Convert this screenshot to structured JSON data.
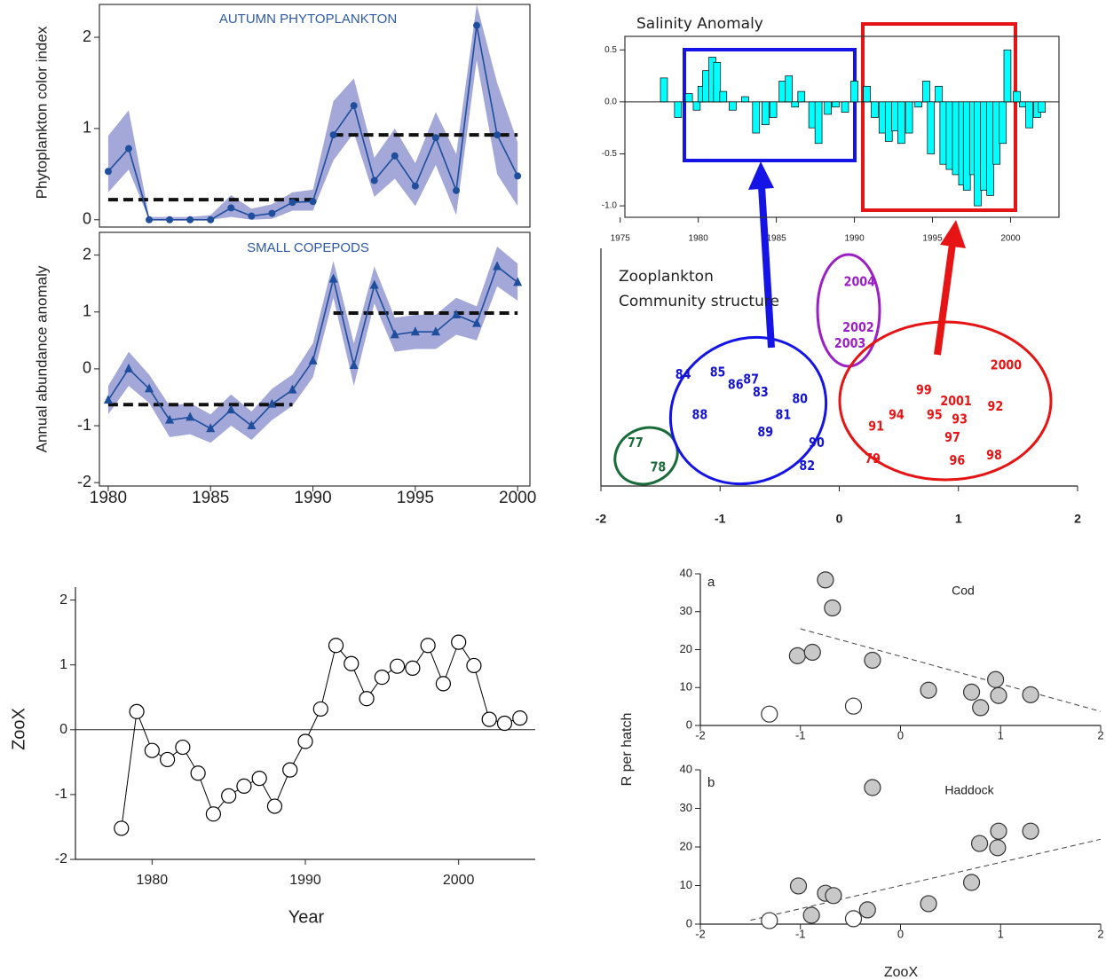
{
  "chart_data": [
    {
      "type": "band-line",
      "title": "AUTUMN PHYTOPLANKTON",
      "y_label": "Phytoplankton color index",
      "x": [
        1980,
        1981,
        1982,
        1983,
        1984,
        1985,
        1986,
        1987,
        1988,
        1989,
        1990,
        1991,
        1992,
        1993,
        1994,
        1995,
        1996,
        1997,
        1998,
        1999,
        2000
      ],
      "values": [
        0.53,
        0.78,
        0,
        0,
        0,
        0,
        0.13,
        0.04,
        0.07,
        0.19,
        0.2,
        0.93,
        1.25,
        0.43,
        0.7,
        0.37,
        0.9,
        0.32,
        2.13,
        0.93,
        0.48
      ],
      "band_lower": [
        0.3,
        0.55,
        0,
        0,
        0,
        0,
        0.03,
        0,
        0.01,
        0.1,
        0.1,
        0.65,
        0.95,
        0.25,
        0.45,
        0.15,
        0.6,
        0.05,
        1.75,
        0.5,
        0.15
      ],
      "band_upper": [
        0.92,
        1.2,
        0.03,
        0.03,
        0.03,
        0.05,
        0.27,
        0.12,
        0.17,
        0.3,
        0.33,
        1.3,
        1.55,
        0.68,
        1.0,
        0.62,
        1.18,
        0.72,
        2.36,
        1.5,
        0.85
      ],
      "marker": "circle",
      "color": "#1f4e9c",
      "band_color": "#a3a8d9",
      "title_color": "#2e5aa6",
      "mean_lines": [
        {
          "x": [
            1980,
            1990
          ],
          "value": 0.22
        },
        {
          "x": [
            1991,
            2000
          ],
          "value": 0.93
        }
      ],
      "xlim": [
        1979.57,
        2000.6
      ],
      "ylim": [
        -0.08,
        2.36
      ],
      "yticks": [
        0,
        1,
        2
      ]
    },
    {
      "type": "band-line",
      "title": "SMALL COPEPODS",
      "y_label": "Annual abundance anomaly",
      "x": [
        1980,
        1981,
        1982,
        1983,
        1984,
        1985,
        1986,
        1987,
        1988,
        1989,
        1990,
        1991,
        1992,
        1993,
        1994,
        1995,
        1996,
        1997,
        1998,
        1999,
        2000
      ],
      "values": [
        -0.55,
        0,
        -0.35,
        -0.9,
        -0.85,
        -1.05,
        -0.72,
        -1.0,
        -0.62,
        -0.37,
        0.14,
        1.58,
        0.06,
        1.47,
        0.6,
        0.65,
        0.65,
        0.95,
        0.8,
        1.8,
        1.52
      ],
      "band_lower": [
        -0.8,
        -0.3,
        -0.6,
        -1.2,
        -1.15,
        -1.3,
        -1.0,
        -1.25,
        -0.9,
        -0.65,
        -0.15,
        1.25,
        -0.3,
        1.15,
        0.3,
        0.35,
        0.35,
        0.6,
        0.5,
        1.45,
        1.2
      ],
      "band_upper": [
        -0.3,
        0.3,
        -0.1,
        -0.65,
        -0.6,
        -0.8,
        -0.45,
        -0.75,
        -0.35,
        -0.1,
        0.45,
        1.9,
        0.45,
        1.8,
        0.9,
        0.95,
        0.95,
        1.25,
        1.1,
        2.15,
        1.85
      ],
      "marker": "triangle",
      "color": "#1f4e9c",
      "band_color": "#a3a8d9",
      "title_color": "#2e5aa6",
      "mean_lines": [
        {
          "x": [
            1980,
            1989
          ],
          "value": -0.63
        },
        {
          "x": [
            1991,
            2000
          ],
          "value": 0.98
        }
      ],
      "xlim": [
        1979.57,
        2000.6
      ],
      "ylim": [
        -2.06,
        2.4
      ],
      "xticks": [
        1980,
        1985,
        1990,
        1995,
        2000
      ],
      "yticks": [
        -2,
        -1,
        0,
        1,
        2
      ]
    },
    {
      "type": "bar",
      "title": "Salinity Anomaly",
      "color": "#00ffff",
      "x": [
        1977.8,
        1978.7,
        1979.4,
        1979.9,
        1980.2,
        1980.5,
        1980.9,
        1981.2,
        1981.6,
        1982.2,
        1983.0,
        1983.7,
        1984.3,
        1984.8,
        1985.4,
        1985.8,
        1986.2,
        1986.6,
        1987.3,
        1987.7,
        1988.3,
        1988.8,
        1989.4,
        1990.0,
        1990.8,
        1991.3,
        1991.8,
        1992.2,
        1992.6,
        1993.0,
        1993.5,
        1994.1,
        1994.6,
        1994.9,
        1995.4,
        1995.7,
        1996.1,
        1996.5,
        1996.9,
        1997.2,
        1997.6,
        1997.9,
        1998.3,
        1998.7,
        1999.1,
        1999.5,
        1999.8,
        2000.4,
        2000.8,
        2001.2,
        2001.7,
        2002.0
      ],
      "values": [
        0.23,
        -0.15,
        0.08,
        -0.08,
        0.15,
        0.3,
        0.43,
        0.38,
        0.1,
        -0.08,
        0.05,
        -0.3,
        -0.22,
        -0.15,
        0.2,
        0.25,
        -0.05,
        0.1,
        -0.25,
        -0.4,
        -0.12,
        -0.05,
        -0.1,
        0.2,
        0.15,
        -0.15,
        -0.3,
        -0.38,
        -0.28,
        -0.4,
        -0.3,
        -0.05,
        0.2,
        -0.5,
        0.15,
        -0.6,
        -0.65,
        -0.7,
        -0.8,
        -0.85,
        -0.7,
        -1.0,
        -0.85,
        -0.9,
        -0.6,
        -0.4,
        0.5,
        0.1,
        -0.05,
        -0.25,
        -0.15,
        -0.1
      ],
      "xlim": [
        1975.3,
        2003.1
      ],
      "ylim": [
        -1.11,
        0.63
      ],
      "xticks": [
        1975,
        1980,
        1985,
        1990,
        1995,
        2000
      ],
      "yticks": [
        0.5,
        {
          "value": 0,
          "label": "0.0"
        },
        {
          "value": -0.5,
          "label": "-0.5"
        },
        {
          "value": -1,
          "label": "-1.0"
        }
      ]
    },
    {
      "type": "scatter-labels",
      "title": "Zooplankton",
      "subtitle": "Community structure",
      "series": [
        {
          "color": "#1a6b3a",
          "labels": [
            "77",
            "78"
          ],
          "x": [
            -1.71,
            -1.52
          ],
          "values": [
            -1.28,
            -1.69
          ]
        },
        {
          "color": "#1414d2",
          "labels": [
            "84",
            "85",
            "86",
            "87",
            "83",
            "80",
            "81",
            "88",
            "89",
            "90",
            "82"
          ],
          "x": [
            -1.31,
            -1.02,
            -0.87,
            -0.74,
            -0.66,
            -0.33,
            -0.47,
            -1.17,
            -0.62,
            -0.19,
            -0.27
          ],
          "values": [
            -0.13,
            -0.09,
            -0.3,
            -0.21,
            -0.43,
            -0.54,
            -0.81,
            -0.81,
            -1.1,
            -1.28,
            -1.67
          ]
        },
        {
          "color": "#9b1fc4",
          "labels": [
            "2004",
            "2002",
            "2003"
          ],
          "x": [
            0.17,
            0.16,
            0.09
          ],
          "values": [
            1.43,
            0.66,
            0.39
          ]
        },
        {
          "color": "#e61414",
          "labels": [
            "2000",
            "99",
            "2001",
            "92",
            "95",
            "93",
            "94",
            "91",
            "97",
            "79",
            "96",
            "98"
          ],
          "x": [
            1.4,
            0.71,
            0.98,
            1.31,
            0.8,
            1.01,
            0.48,
            0.31,
            0.95,
            0.28,
            0.99,
            1.3
          ],
          "values": [
            0.03,
            -0.39,
            -0.58,
            -0.67,
            -0.81,
            -0.88,
            -0.81,
            -1.0,
            -1.19,
            -1.55,
            -1.58,
            -1.49
          ]
        }
      ],
      "xlim": [
        -2,
        2
      ],
      "ylim": [
        -2,
        2
      ],
      "xticks": [
        -2,
        -1,
        0,
        1,
        2
      ]
    },
    {
      "type": "line",
      "x_label": "Year",
      "y_label": "ZooX",
      "marker": "open-circle",
      "color": "#000000",
      "zero_line": true,
      "x": [
        1978,
        1979,
        1980,
        1981,
        1982,
        1983,
        1984,
        1985,
        1986,
        1987,
        1988,
        1989,
        1990,
        1991,
        1992,
        1993,
        1994,
        1995,
        1996,
        1997,
        1998,
        1999,
        2000,
        2001,
        2002,
        2003,
        2004
      ],
      "values": [
        -1.52,
        0.28,
        -0.32,
        -0.46,
        -0.27,
        -0.67,
        -1.3,
        -1.02,
        -0.87,
        -0.75,
        -1.18,
        -0.62,
        -0.18,
        0.32,
        1.3,
        1.02,
        0.48,
        0.81,
        0.98,
        0.95,
        1.3,
        0.71,
        1.35,
        0.99,
        0.16,
        0.1,
        0.18
      ],
      "xlim": [
        1975,
        2005
      ],
      "ylim": [
        -2,
        2.2
      ],
      "xticks": [
        1980,
        1990,
        2000
      ],
      "yticks": [
        -2,
        -1,
        0,
        1,
        2
      ]
    },
    {
      "type": "scatter",
      "panel_label": "a",
      "title": "Cod",
      "series": [
        {
          "color": "#c8c8c8",
          "x": [
            -0.75,
            -0.68,
            -1.03,
            -0.88,
            -0.28,
            0.28,
            0.71,
            0.95,
            0.8,
            0.98,
            1.3
          ],
          "values": [
            38.4,
            31,
            18.4,
            19.3,
            17.2,
            9.3,
            8.8,
            12.1,
            4.7,
            7.9,
            8.1
          ]
        },
        {
          "color": "#ffffff",
          "x": [
            -1.31,
            -0.47
          ],
          "values": [
            3.0,
            5.1
          ]
        }
      ],
      "trend": {
        "x": [
          -1,
          2
        ],
        "values": [
          25.5,
          3.7
        ]
      },
      "xlim": [
        -2,
        2
      ],
      "ylim": [
        0,
        40
      ],
      "xticks": [
        -2,
        -1,
        0,
        1,
        2
      ],
      "yticks": [
        0,
        10,
        20,
        30,
        40
      ]
    },
    {
      "type": "scatter",
      "panel_label": "b",
      "title": "Haddock",
      "x_label": "ZooX",
      "y_label": "R per hatch",
      "series": [
        {
          "color": "#c8c8c8",
          "x": [
            -0.28,
            -1.02,
            -0.75,
            -0.67,
            -0.89,
            -0.33,
            0.28,
            0.71,
            0.79,
            0.97,
            0.98,
            1.3
          ],
          "values": [
            35.4,
            9.9,
            8.0,
            7.4,
            2.3,
            3.7,
            5.3,
            10.8,
            20.9,
            19.8,
            24.1,
            24.1
          ]
        },
        {
          "color": "#ffffff",
          "x": [
            -1.31,
            -0.47
          ],
          "values": [
            0.9,
            1.4
          ]
        }
      ],
      "trend": {
        "x": [
          -1.5,
          2
        ],
        "values": [
          1,
          22
        ]
      },
      "xlim": [
        -2,
        2
      ],
      "ylim": [
        0,
        40
      ],
      "xticks": [
        -2,
        -1,
        0,
        1,
        2
      ],
      "yticks": [
        0,
        10,
        20,
        30,
        40
      ]
    }
  ]
}
